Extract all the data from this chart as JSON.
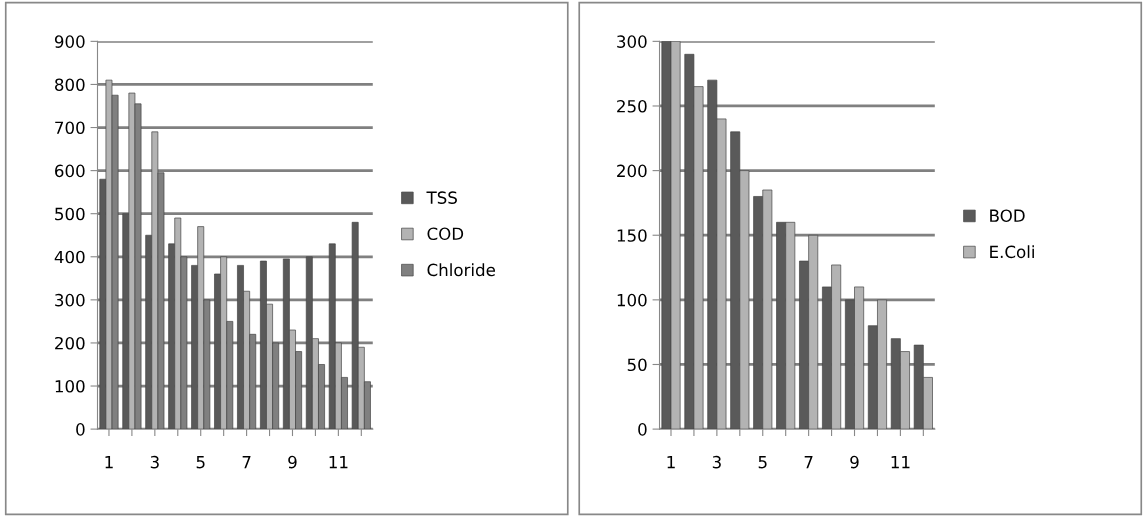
{
  "chart_data": [
    {
      "type": "bar",
      "categories": [
        "1",
        null,
        "3",
        null,
        "5",
        null,
        "7",
        null,
        "9",
        null,
        "11",
        null
      ],
      "series": [
        {
          "name": "TSS",
          "color": "#595959",
          "values": [
            580,
            500,
            450,
            430,
            380,
            360,
            380,
            390,
            395,
            400,
            430,
            480
          ]
        },
        {
          "name": "COD",
          "color": "#b3b3b3",
          "values": [
            810,
            780,
            690,
            490,
            470,
            400,
            320,
            290,
            230,
            210,
            200,
            190
          ]
        },
        {
          "name": "Chloride",
          "color": "#808080",
          "values": [
            775,
            755,
            595,
            400,
            300,
            250,
            220,
            200,
            180,
            150,
            120,
            110
          ]
        }
      ],
      "ylim": [
        0,
        900
      ],
      "yticks": [
        0,
        100,
        200,
        300,
        400,
        500,
        600,
        700,
        800,
        900
      ],
      "grid": "y",
      "legend": "right"
    },
    {
      "type": "bar",
      "categories": [
        "1",
        null,
        "3",
        null,
        "5",
        null,
        "7",
        null,
        "9",
        null,
        "11",
        null
      ],
      "series": [
        {
          "name": "BOD",
          "color": "#5a5a5a",
          "values": [
            300,
            290,
            270,
            230,
            180,
            160,
            130,
            110,
            100,
            80,
            70,
            65
          ]
        },
        {
          "name": "E.Coli",
          "color": "#b3b3b3",
          "values": [
            300,
            265,
            240,
            200,
            185,
            160,
            150,
            127,
            110,
            100,
            60,
            40
          ]
        }
      ],
      "ylim": [
        0,
        300
      ],
      "yticks": [
        0,
        50,
        100,
        150,
        200,
        250,
        300
      ],
      "grid": "y",
      "legend": "right"
    }
  ]
}
